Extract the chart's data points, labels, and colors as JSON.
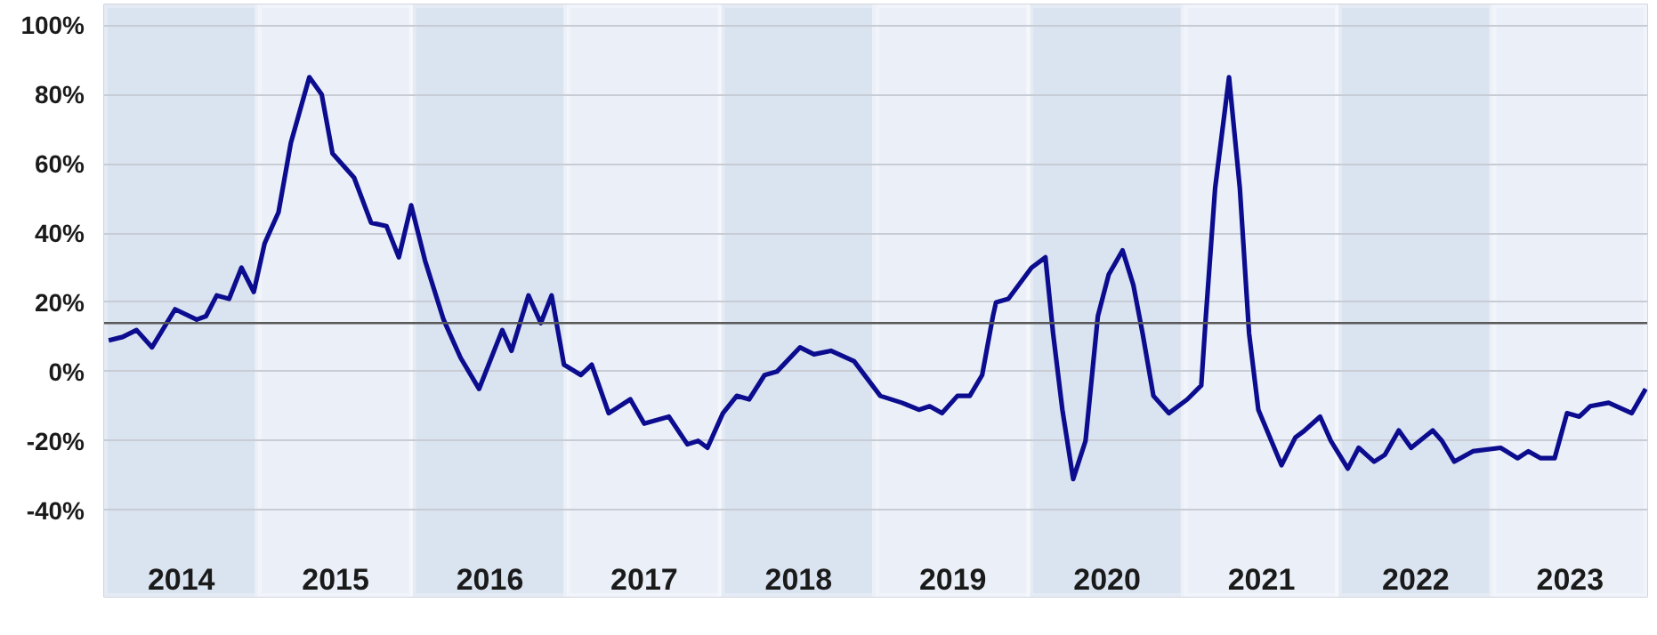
{
  "chart_data": {
    "type": "line",
    "xlim": [
      2014,
      2024
    ],
    "ylim": [
      -65,
      106
    ],
    "xticks": [
      {
        "value": 2014.5,
        "label": "2014"
      },
      {
        "value": 2015.5,
        "label": "2015"
      },
      {
        "value": 2016.5,
        "label": "2016"
      },
      {
        "value": 2017.5,
        "label": "2017"
      },
      {
        "value": 2018.5,
        "label": "2018"
      },
      {
        "value": 2019.5,
        "label": "2019"
      },
      {
        "value": 2020.5,
        "label": "2020"
      },
      {
        "value": 2021.5,
        "label": "2021"
      },
      {
        "value": 2022.5,
        "label": "2022"
      },
      {
        "value": 2023.5,
        "label": "2023"
      }
    ],
    "yticks": [
      {
        "value": -40,
        "label": "-40%"
      },
      {
        "value": -20,
        "label": "-20%"
      },
      {
        "value": 0,
        "label": "0%"
      },
      {
        "value": 20,
        "label": "20%"
      },
      {
        "value": 40,
        "label": "40%"
      },
      {
        "value": 60,
        "label": "60%"
      },
      {
        "value": 80,
        "label": "80%"
      },
      {
        "value": 100,
        "label": "100%"
      }
    ],
    "grid": "y",
    "marker": "none",
    "line_style": "solid",
    "ref_lines": [
      {
        "axis": "y",
        "value": 14,
        "color": "#595959"
      }
    ],
    "bands": [
      {
        "axis": "x",
        "from": 2014,
        "to": 2015,
        "color": "#dae3f0"
      },
      {
        "axis": "x",
        "from": 2015,
        "to": 2016,
        "color": "#ebf0f8"
      },
      {
        "axis": "x",
        "from": 2016,
        "to": 2017,
        "color": "#dae3f0"
      },
      {
        "axis": "x",
        "from": 2017,
        "to": 2018,
        "color": "#ebf0f8"
      },
      {
        "axis": "x",
        "from": 2018,
        "to": 2019,
        "color": "#dae3f0"
      },
      {
        "axis": "x",
        "from": 2019,
        "to": 2020,
        "color": "#ebf0f8"
      },
      {
        "axis": "x",
        "from": 2020,
        "to": 2021,
        "color": "#dae3f0"
      },
      {
        "axis": "x",
        "from": 2021,
        "to": 2022,
        "color": "#ebf0f8"
      },
      {
        "axis": "x",
        "from": 2022,
        "to": 2023,
        "color": "#dae3f0"
      },
      {
        "axis": "x",
        "from": 2023,
        "to": 2024,
        "color": "#ebf0f8"
      }
    ],
    "series": [
      {
        "color": "#0c0c8f",
        "x": [
          2014.03,
          2014.12,
          2014.21,
          2014.31,
          2014.46,
          2014.6,
          2014.66,
          2014.73,
          2014.81,
          2014.89,
          2014.97,
          2015.04,
          2015.13,
          2015.21,
          2015.33,
          2015.41,
          2015.48,
          2015.62,
          2015.73,
          2015.83,
          2015.91,
          2015.99,
          2016.08,
          2016.2,
          2016.31,
          2016.43,
          2016.58,
          2016.64,
          2016.75,
          2016.83,
          2016.9,
          2016.98,
          2017.09,
          2017.16,
          2017.27,
          2017.41,
          2017.5,
          2017.66,
          2017.78,
          2017.85,
          2017.91,
          2018.01,
          2018.1,
          2018.18,
          2018.28,
          2018.36,
          2018.51,
          2018.6,
          2018.71,
          2018.86,
          2019.03,
          2019.17,
          2019.28,
          2019.35,
          2019.43,
          2019.53,
          2019.61,
          2019.69,
          2019.76,
          2019.78,
          2019.86,
          2020.01,
          2020.1,
          2020.15,
          2020.21,
          2020.28,
          2020.36,
          2020.44,
          2020.51,
          2020.6,
          2020.67,
          2020.73,
          2020.8,
          2020.9,
          2021.02,
          2021.11,
          2021.14,
          2021.2,
          2021.29,
          2021.36,
          2021.42,
          2021.48,
          2021.63,
          2021.72,
          2021.78,
          2021.88,
          2021.95,
          2022.06,
          2022.13,
          2022.23,
          2022.3,
          2022.39,
          2022.47,
          2022.61,
          2022.67,
          2022.75,
          2022.87,
          2023.05,
          2023.16,
          2023.23,
          2023.31,
          2023.4,
          2023.48,
          2023.56,
          2023.63,
          2023.75,
          2023.9,
          2023.99
        ],
        "values": [
          9,
          10,
          12,
          7,
          18,
          15,
          16,
          22,
          21,
          30,
          23,
          37,
          46,
          66,
          85,
          80,
          63,
          56,
          43,
          42,
          33,
          48,
          32,
          15,
          4,
          -5,
          12,
          6,
          22,
          14,
          22,
          2,
          -1,
          2,
          -12,
          -8,
          -15,
          -13,
          -21,
          -20,
          -22,
          -12,
          -7,
          -8,
          -1,
          0,
          7,
          5,
          6,
          3,
          -7,
          -9,
          -11,
          -10,
          -12,
          -7,
          -7,
          -1,
          16,
          20,
          21,
          30,
          33,
          11,
          -11,
          -31,
          -20,
          16,
          28,
          35,
          25,
          11,
          -7,
          -12,
          -8,
          -4,
          16,
          53,
          85,
          53,
          11,
          -11,
          -27,
          -19,
          -17,
          -13,
          -20,
          -28,
          -22,
          -26,
          -24,
          -17,
          -22,
          -17,
          -20,
          -26,
          -23,
          -22,
          -25,
          -23,
          -25,
          -25,
          -12,
          -13,
          -10,
          -9,
          -12,
          -5
        ]
      }
    ]
  }
}
